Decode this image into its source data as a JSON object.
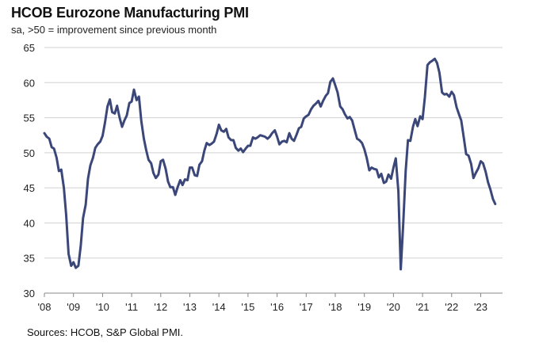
{
  "title": "HCOB Eurozone Manufacturing PMI",
  "subtitle": "sa, >50 = improvement  since previous month",
  "source": "Sources: HCOB,  S&P Global PMI.",
  "colors": {
    "line": "#3b4778",
    "grid": "#d0d0d0",
    "axis": "#888888"
  },
  "chart_data": {
    "type": "line",
    "title": "HCOB Eurozone Manufacturing PMI",
    "subtitle": "sa, >50 = improvement  since previous month",
    "xlabel": "",
    "ylabel": "",
    "ylim": [
      30,
      65
    ],
    "xlim": [
      2008.0,
      2023.75
    ],
    "y_ticks": [
      "30",
      "35",
      "40",
      "45",
      "50",
      "55",
      "60",
      "65"
    ],
    "x_ticks": [
      "'08",
      "'09",
      "'10",
      "'11",
      "'12",
      "'13",
      "'14",
      "'15",
      "'16",
      "'17",
      "'18",
      "'19",
      "'20",
      "'21",
      "'22",
      "'23"
    ],
    "grid": "horizontal",
    "series": [
      {
        "name": "",
        "points": [
          [
            2008.0,
            52.8
          ],
          [
            2008.08,
            52.3
          ],
          [
            2008.17,
            52.0
          ],
          [
            2008.25,
            50.8
          ],
          [
            2008.33,
            50.6
          ],
          [
            2008.42,
            49.3
          ],
          [
            2008.5,
            47.4
          ],
          [
            2008.58,
            47.6
          ],
          [
            2008.67,
            45.0
          ],
          [
            2008.75,
            41.1
          ],
          [
            2008.83,
            35.6
          ],
          [
            2008.92,
            33.9
          ],
          [
            2009.0,
            34.4
          ],
          [
            2009.08,
            33.6
          ],
          [
            2009.17,
            33.9
          ],
          [
            2009.25,
            36.8
          ],
          [
            2009.33,
            40.7
          ],
          [
            2009.42,
            42.6
          ],
          [
            2009.5,
            46.3
          ],
          [
            2009.58,
            48.2
          ],
          [
            2009.67,
            49.3
          ],
          [
            2009.75,
            50.7
          ],
          [
            2009.83,
            51.2
          ],
          [
            2009.92,
            51.6
          ],
          [
            2010.0,
            52.4
          ],
          [
            2010.08,
            54.2
          ],
          [
            2010.17,
            56.6
          ],
          [
            2010.25,
            57.6
          ],
          [
            2010.33,
            55.8
          ],
          [
            2010.42,
            55.6
          ],
          [
            2010.5,
            56.7
          ],
          [
            2010.58,
            55.1
          ],
          [
            2010.67,
            53.7
          ],
          [
            2010.75,
            54.6
          ],
          [
            2010.83,
            55.3
          ],
          [
            2010.92,
            57.1
          ],
          [
            2011.0,
            57.3
          ],
          [
            2011.08,
            59.0
          ],
          [
            2011.17,
            57.5
          ],
          [
            2011.25,
            58.0
          ],
          [
            2011.33,
            54.6
          ],
          [
            2011.42,
            52.0
          ],
          [
            2011.5,
            50.4
          ],
          [
            2011.58,
            49.0
          ],
          [
            2011.67,
            48.5
          ],
          [
            2011.75,
            47.1
          ],
          [
            2011.83,
            46.4
          ],
          [
            2011.92,
            46.9
          ],
          [
            2012.0,
            48.8
          ],
          [
            2012.08,
            49.0
          ],
          [
            2012.17,
            47.7
          ],
          [
            2012.25,
            45.9
          ],
          [
            2012.33,
            45.1
          ],
          [
            2012.42,
            45.1
          ],
          [
            2012.5,
            44.0
          ],
          [
            2012.58,
            45.1
          ],
          [
            2012.67,
            46.1
          ],
          [
            2012.75,
            45.4
          ],
          [
            2012.83,
            46.2
          ],
          [
            2012.92,
            46.1
          ],
          [
            2013.0,
            47.9
          ],
          [
            2013.08,
            47.9
          ],
          [
            2013.17,
            46.8
          ],
          [
            2013.25,
            46.7
          ],
          [
            2013.33,
            48.3
          ],
          [
            2013.42,
            48.8
          ],
          [
            2013.5,
            50.3
          ],
          [
            2013.58,
            51.4
          ],
          [
            2013.67,
            51.1
          ],
          [
            2013.75,
            51.3
          ],
          [
            2013.83,
            51.6
          ],
          [
            2013.92,
            52.7
          ],
          [
            2014.0,
            54.0
          ],
          [
            2014.08,
            53.2
          ],
          [
            2014.17,
            53.0
          ],
          [
            2014.25,
            53.4
          ],
          [
            2014.33,
            52.2
          ],
          [
            2014.42,
            51.8
          ],
          [
            2014.5,
            51.8
          ],
          [
            2014.58,
            50.7
          ],
          [
            2014.67,
            50.3
          ],
          [
            2014.75,
            50.6
          ],
          [
            2014.83,
            50.1
          ],
          [
            2014.92,
            50.6
          ],
          [
            2015.0,
            51.0
          ],
          [
            2015.08,
            51.0
          ],
          [
            2015.17,
            52.2
          ],
          [
            2015.25,
            52.0
          ],
          [
            2015.33,
            52.2
          ],
          [
            2015.42,
            52.5
          ],
          [
            2015.5,
            52.4
          ],
          [
            2015.58,
            52.3
          ],
          [
            2015.67,
            52.0
          ],
          [
            2015.75,
            52.3
          ],
          [
            2015.83,
            52.8
          ],
          [
            2015.92,
            53.2
          ],
          [
            2016.0,
            52.3
          ],
          [
            2016.08,
            51.2
          ],
          [
            2016.17,
            51.6
          ],
          [
            2016.25,
            51.7
          ],
          [
            2016.33,
            51.5
          ],
          [
            2016.42,
            52.8
          ],
          [
            2016.5,
            52.0
          ],
          [
            2016.58,
            51.7
          ],
          [
            2016.67,
            52.6
          ],
          [
            2016.75,
            53.5
          ],
          [
            2016.83,
            53.7
          ],
          [
            2016.92,
            54.9
          ],
          [
            2017.0,
            55.2
          ],
          [
            2017.08,
            55.4
          ],
          [
            2017.17,
            56.2
          ],
          [
            2017.25,
            56.7
          ],
          [
            2017.33,
            57.0
          ],
          [
            2017.42,
            57.4
          ],
          [
            2017.5,
            56.6
          ],
          [
            2017.58,
            57.4
          ],
          [
            2017.67,
            58.1
          ],
          [
            2017.75,
            58.5
          ],
          [
            2017.83,
            60.1
          ],
          [
            2017.92,
            60.6
          ],
          [
            2018.0,
            59.6
          ],
          [
            2018.08,
            58.6
          ],
          [
            2018.17,
            56.6
          ],
          [
            2018.25,
            56.2
          ],
          [
            2018.33,
            55.5
          ],
          [
            2018.42,
            54.9
          ],
          [
            2018.5,
            55.1
          ],
          [
            2018.58,
            54.6
          ],
          [
            2018.67,
            53.2
          ],
          [
            2018.75,
            52.0
          ],
          [
            2018.83,
            51.8
          ],
          [
            2018.92,
            51.4
          ],
          [
            2019.0,
            50.5
          ],
          [
            2019.08,
            49.3
          ],
          [
            2019.17,
            47.5
          ],
          [
            2019.25,
            47.9
          ],
          [
            2019.33,
            47.7
          ],
          [
            2019.42,
            47.6
          ],
          [
            2019.5,
            46.5
          ],
          [
            2019.58,
            47.0
          ],
          [
            2019.67,
            45.7
          ],
          [
            2019.75,
            45.9
          ],
          [
            2019.83,
            46.9
          ],
          [
            2019.92,
            46.3
          ],
          [
            2020.0,
            47.9
          ],
          [
            2020.08,
            49.2
          ],
          [
            2020.17,
            44.5
          ],
          [
            2020.25,
            33.4
          ],
          [
            2020.33,
            39.4
          ],
          [
            2020.42,
            47.4
          ],
          [
            2020.5,
            51.8
          ],
          [
            2020.58,
            51.7
          ],
          [
            2020.67,
            53.7
          ],
          [
            2020.75,
            54.8
          ],
          [
            2020.83,
            53.8
          ],
          [
            2020.92,
            55.2
          ],
          [
            2021.0,
            54.8
          ],
          [
            2021.08,
            57.9
          ],
          [
            2021.17,
            62.5
          ],
          [
            2021.25,
            62.9
          ],
          [
            2021.33,
            63.1
          ],
          [
            2021.42,
            63.4
          ],
          [
            2021.5,
            62.8
          ],
          [
            2021.58,
            61.4
          ],
          [
            2021.67,
            58.6
          ],
          [
            2021.75,
            58.3
          ],
          [
            2021.83,
            58.4
          ],
          [
            2021.92,
            58.0
          ],
          [
            2022.0,
            58.7
          ],
          [
            2022.08,
            58.2
          ],
          [
            2022.17,
            56.5
          ],
          [
            2022.25,
            55.5
          ],
          [
            2022.33,
            54.6
          ],
          [
            2022.42,
            52.1
          ],
          [
            2022.5,
            49.8
          ],
          [
            2022.58,
            49.6
          ],
          [
            2022.67,
            48.4
          ],
          [
            2022.75,
            46.4
          ],
          [
            2022.83,
            47.1
          ],
          [
            2022.92,
            47.8
          ],
          [
            2023.0,
            48.8
          ],
          [
            2023.08,
            48.5
          ],
          [
            2023.17,
            47.3
          ],
          [
            2023.25,
            45.8
          ],
          [
            2023.33,
            44.8
          ],
          [
            2023.42,
            43.4
          ],
          [
            2023.5,
            42.7
          ]
        ]
      }
    ]
  }
}
